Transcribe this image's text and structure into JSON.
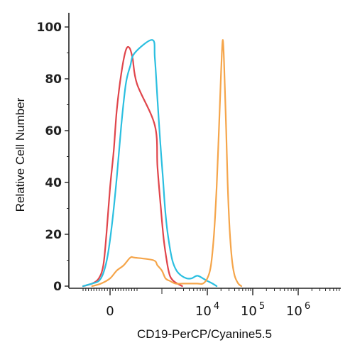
{
  "chart_data": {
    "type": "line",
    "title": "",
    "xlabel": "CD19-PerCP/Cyanine5.5",
    "ylabel": "Relative Cell Number",
    "ylim": [
      0,
      100
    ],
    "yticks": [
      0,
      20,
      40,
      60,
      80,
      100
    ],
    "xticks": [
      {
        "value": 0,
        "label": "0",
        "base": "",
        "exp": ""
      },
      {
        "value": 10000,
        "label": "",
        "base": "10",
        "exp": "4"
      },
      {
        "value": 100000,
        "label": "",
        "base": "10",
        "exp": "5"
      },
      {
        "value": 1000000,
        "label": "",
        "base": "10",
        "exp": "6"
      }
    ],
    "xscale": "biexponential",
    "grid": false,
    "legend": "none",
    "series": [
      {
        "color": "#e0454b",
        "x": [
          -600,
          -400,
          -250,
          -150,
          -80,
          0,
          80,
          150,
          250,
          350,
          430,
          500,
          600,
          700,
          800,
          950,
          1100,
          1300,
          1500,
          1800,
          2200,
          2800
        ],
        "y": [
          0,
          1,
          3,
          8,
          20,
          38,
          52,
          68,
          82,
          91,
          92,
          88,
          78,
          62,
          46,
          30,
          18,
          9,
          4,
          2,
          1,
          0
        ]
      },
      {
        "color": "#2bbfe0",
        "x": [
          -600,
          -400,
          -250,
          -150,
          -50,
          50,
          150,
          250,
          350,
          450,
          550,
          620,
          700,
          800,
          900,
          1050,
          1200,
          1400,
          1700,
          2100,
          2700,
          3500,
          4500,
          6000,
          8000,
          10000,
          13000,
          16000
        ],
        "y": [
          0,
          1,
          2,
          5,
          12,
          25,
          42,
          62,
          78,
          85,
          90,
          95,
          88,
          72,
          58,
          42,
          28,
          18,
          10,
          6,
          4,
          3,
          3,
          4,
          3,
          2,
          1,
          0
        ]
      },
      {
        "color": "#f5a54a",
        "x": [
          -400,
          -200,
          0,
          150,
          300,
          450,
          550,
          650,
          800,
          1000,
          1200,
          1500,
          2000,
          3000,
          4000,
          6000,
          8000,
          10000,
          12000,
          14000,
          16000,
          18000,
          20000,
          22000,
          24000,
          26000,
          28000,
          31000,
          35000,
          40000,
          48000,
          56000
        ],
        "y": [
          0,
          1,
          3,
          6,
          8,
          11,
          11,
          10,
          8,
          6,
          3,
          2,
          1,
          1,
          1,
          1,
          1,
          3,
          8,
          20,
          38,
          60,
          82,
          95,
          80,
          60,
          40,
          22,
          10,
          4,
          1,
          0
        ]
      }
    ]
  }
}
